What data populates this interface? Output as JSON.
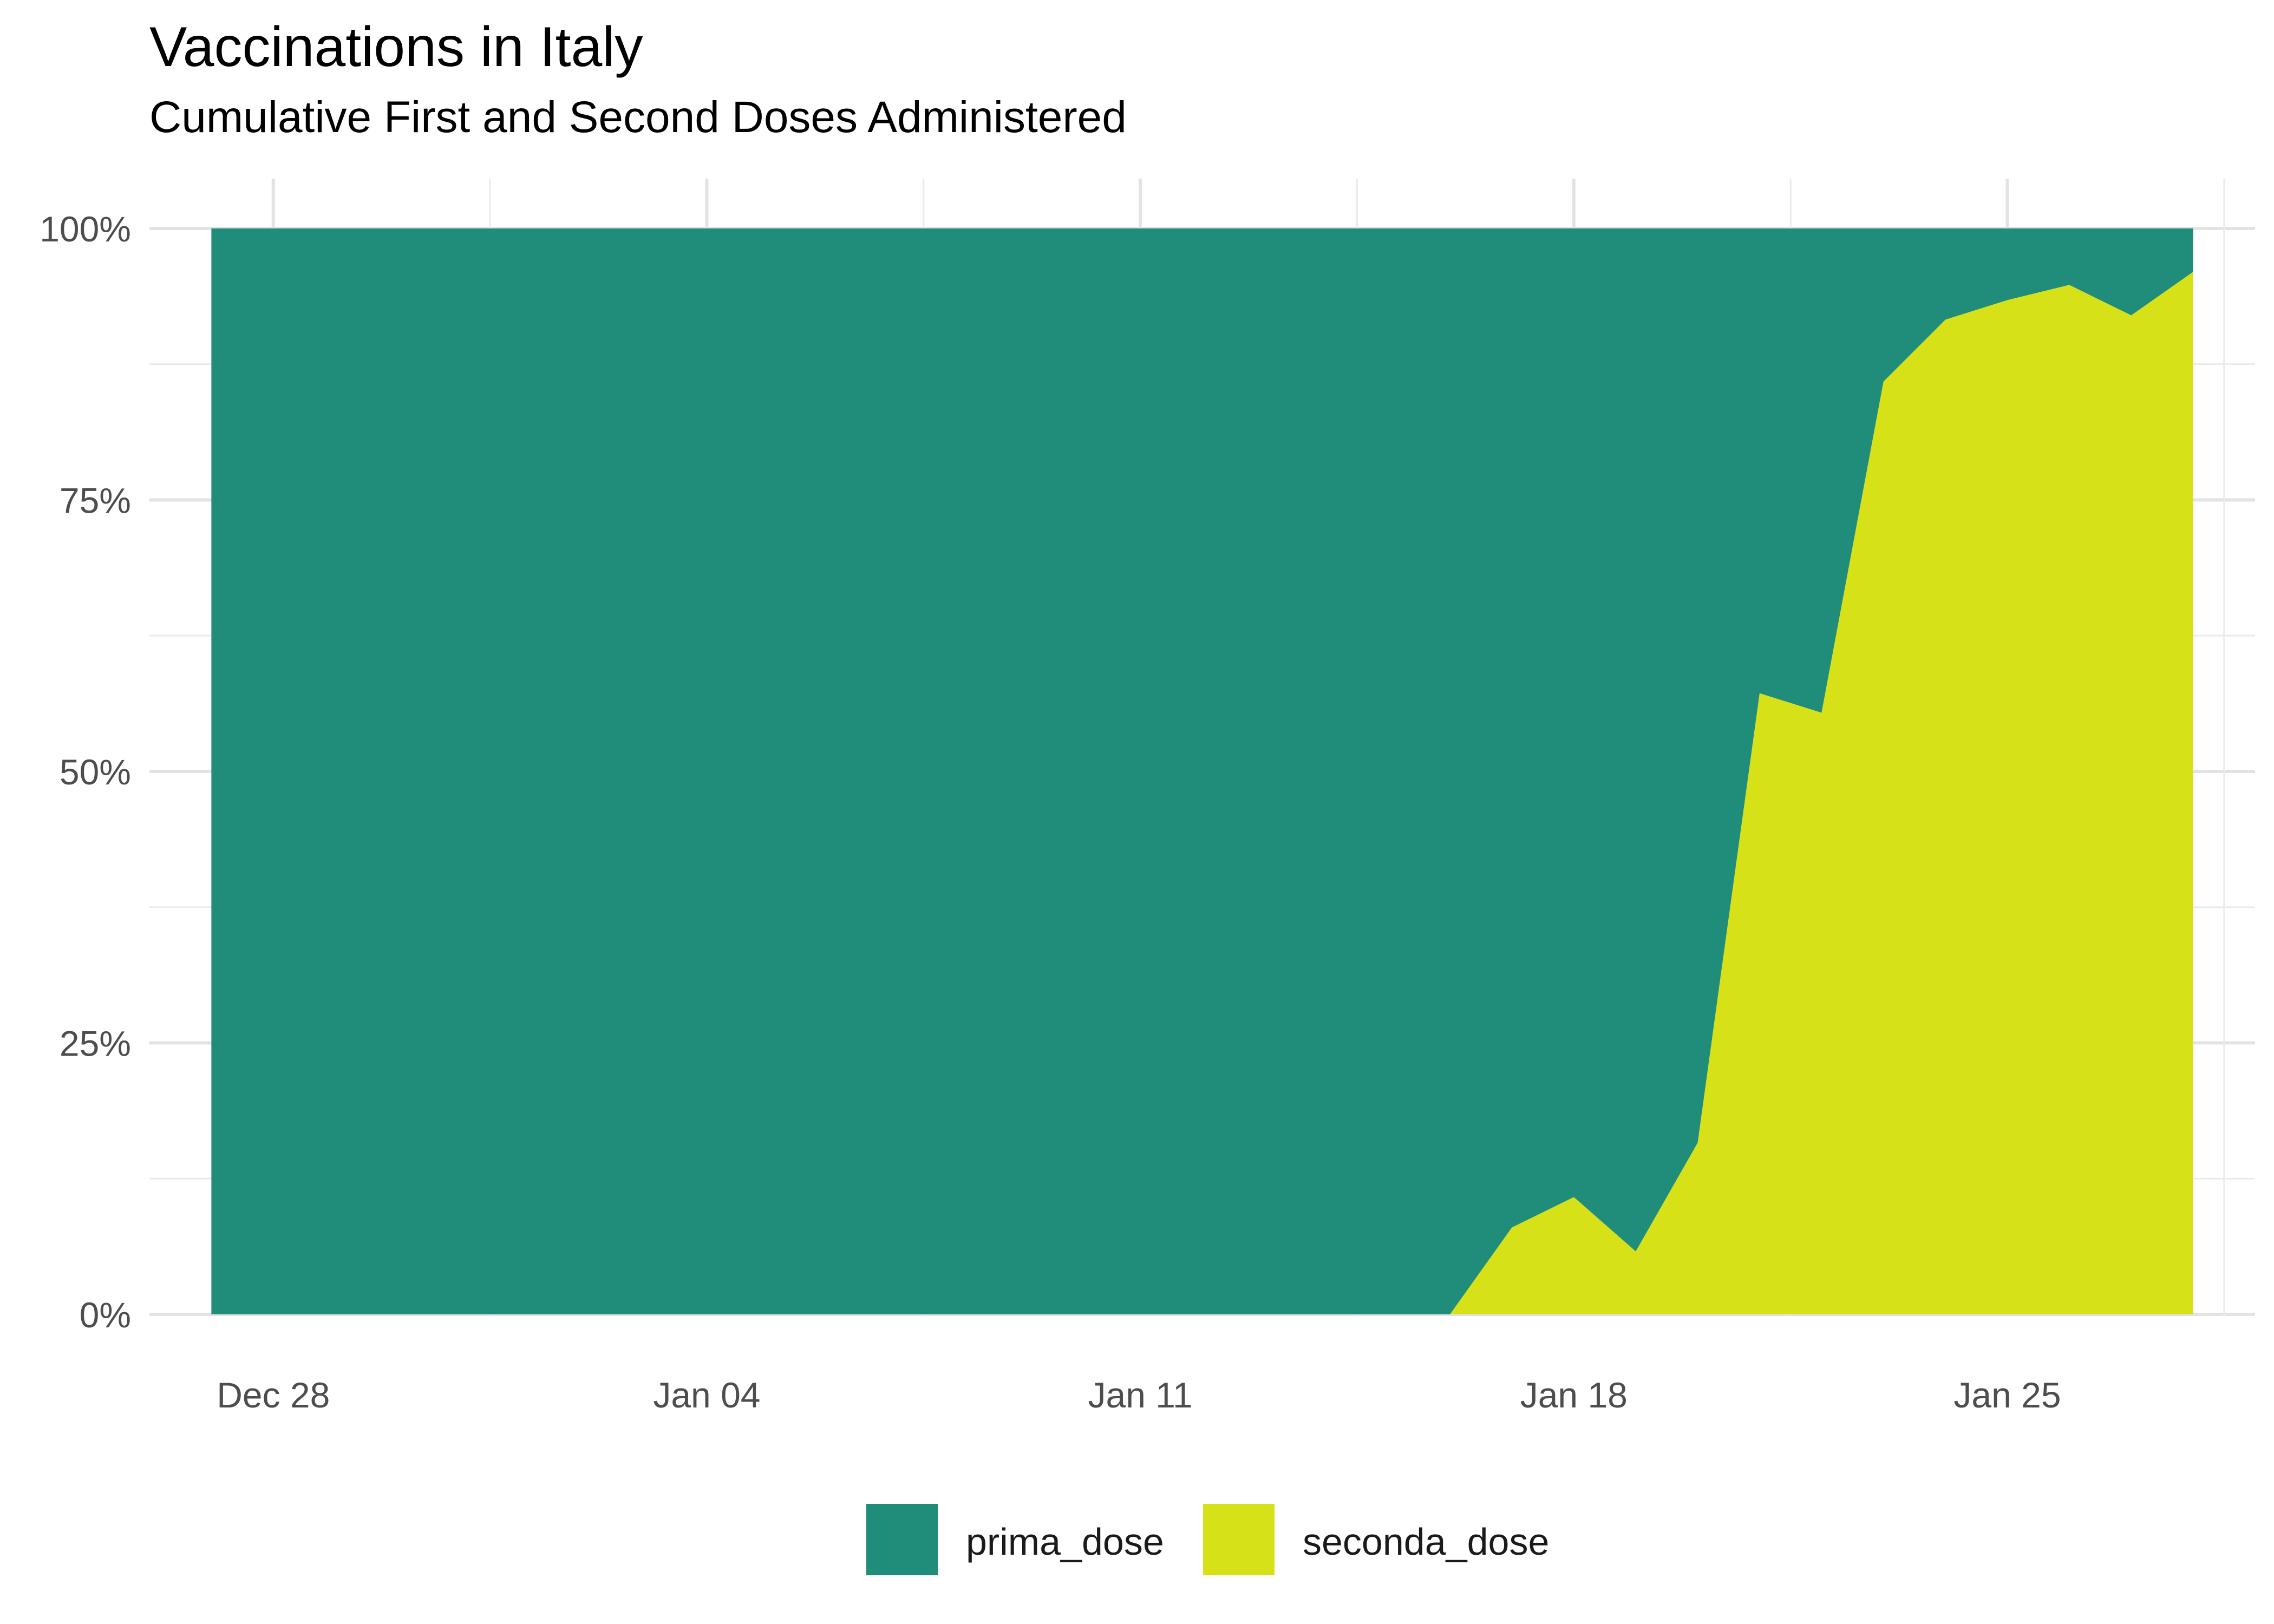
{
  "chart_data": {
    "type": "area",
    "stacking": "percent",
    "title": "Vaccinations in Italy",
    "subtitle": "Cumulative First and Second Doses Administered",
    "xlabel": "",
    "ylabel": "",
    "x_axis_type": "date",
    "x_tick_labels": [
      "Dec 28",
      "Jan 04",
      "Jan 11",
      "Jan 18",
      "Jan 25"
    ],
    "x_tick_dates": [
      "2020-12-28",
      "2021-01-04",
      "2021-01-11",
      "2021-01-18",
      "2021-01-25"
    ],
    "x_range": [
      "2020-12-26",
      "2021-01-29"
    ],
    "y_tick_labels": [
      "0%",
      "25%",
      "50%",
      "75%",
      "100%"
    ],
    "y_tick_values": [
      0,
      25,
      50,
      75,
      100
    ],
    "ylim": [
      0,
      100
    ],
    "grid": true,
    "legend_position": "bottom",
    "x": [
      "2020-12-27",
      "2020-12-28",
      "2020-12-29",
      "2020-12-30",
      "2020-12-31",
      "2021-01-01",
      "2021-01-02",
      "2021-01-03",
      "2021-01-04",
      "2021-01-05",
      "2021-01-06",
      "2021-01-07",
      "2021-01-08",
      "2021-01-09",
      "2021-01-10",
      "2021-01-11",
      "2021-01-12",
      "2021-01-13",
      "2021-01-14",
      "2021-01-15",
      "2021-01-16",
      "2021-01-17",
      "2021-01-18",
      "2021-01-19",
      "2021-01-20",
      "2021-01-21",
      "2021-01-22",
      "2021-01-23",
      "2021-01-24",
      "2021-01-25",
      "2021-01-26",
      "2021-01-27",
      "2021-01-28"
    ],
    "series": [
      {
        "name": "seconda_dose",
        "color": "#D7E117",
        "values": [
          0,
          0,
          0,
          0,
          0,
          0,
          0,
          0,
          0,
          0,
          0,
          0,
          0,
          0,
          0,
          0,
          0,
          0,
          0,
          0,
          0,
          8,
          10.8,
          5.8,
          15.8,
          57.2,
          55.4,
          85.9,
          91.6,
          93.4,
          94.8,
          92,
          96
        ]
      },
      {
        "name": "prima_dose",
        "color": "#208C7A",
        "values": [
          100,
          100,
          100,
          100,
          100,
          100,
          100,
          100,
          100,
          100,
          100,
          100,
          100,
          100,
          100,
          100,
          100,
          100,
          100,
          100,
          100,
          92,
          89.2,
          94.2,
          84.2,
          42.8,
          44.6,
          14.1,
          8.4,
          6.6,
          5.2,
          8,
          4
        ]
      }
    ]
  },
  "legend": {
    "items": [
      {
        "label": "prima_dose",
        "color": "#208C7A"
      },
      {
        "label": "seconda_dose",
        "color": "#D7E117"
      }
    ]
  }
}
